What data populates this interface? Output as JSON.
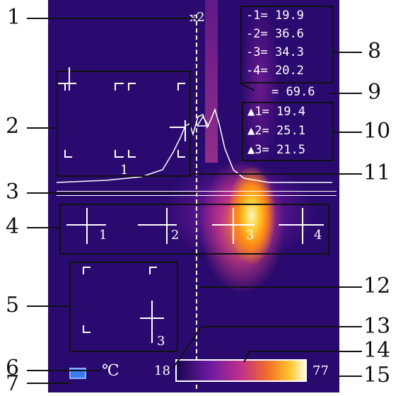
{
  "callouts": [
    "1",
    "2",
    "3",
    "4",
    "5",
    "6",
    "7",
    "8",
    "9",
    "10",
    "11",
    "12",
    "13",
    "14",
    "15"
  ],
  "spot_readings": [
    {
      "label": "-1=",
      "value": "19.9"
    },
    {
      "label": "-2=",
      "value": "36.6"
    },
    {
      "label": "-3=",
      "value": "34.3"
    },
    {
      "label": "-4=",
      "value": "20.2"
    }
  ],
  "max_reading": {
    "label": "=",
    "value": "69.6"
  },
  "area_readings": [
    {
      "label": "1=",
      "value": "19.4"
    },
    {
      "label": "2=",
      "value": "25.1"
    },
    {
      "label": "3=",
      "value": "21.5"
    }
  ],
  "line_marker": "x2",
  "area_labels": {
    "box2": "1",
    "box5": "3"
  },
  "spot_labels": [
    "1",
    "2",
    "3",
    "4"
  ],
  "unit": "℃",
  "scale": {
    "min": "18",
    "max": "77"
  },
  "colors": {
    "background": "#2a0a6e",
    "hot": "#ffcc33",
    "overlay": "#ffffff"
  }
}
